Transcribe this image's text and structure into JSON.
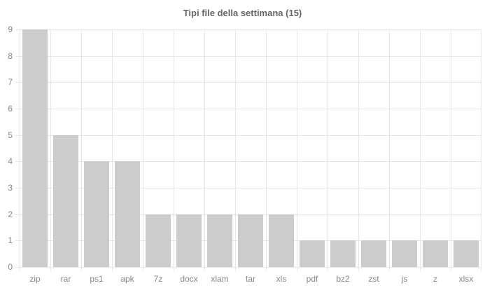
{
  "chart_data": {
    "type": "bar",
    "title": "Tipi file della settimana (15)",
    "categories": [
      "zip",
      "rar",
      "ps1",
      "apk",
      "7z",
      "docx",
      "xlam",
      "tar",
      "xls",
      "pdf",
      "bz2",
      "zst",
      "js",
      "z",
      "xlsx"
    ],
    "values": [
      9,
      5,
      4,
      4,
      2,
      2,
      2,
      2,
      2,
      1,
      1,
      1,
      1,
      1,
      1
    ],
    "xlabel": "",
    "ylabel": "",
    "ylim": [
      0,
      9
    ],
    "y_ticks": [
      0,
      1,
      2,
      3,
      4,
      5,
      6,
      7,
      8,
      9
    ],
    "grid": "both",
    "legend": "none",
    "colors": {
      "bar": "#cccccc",
      "grid": "#e6e6e6",
      "tick_label": "#888888",
      "title": "#666666",
      "background": "#ffffff"
    }
  }
}
